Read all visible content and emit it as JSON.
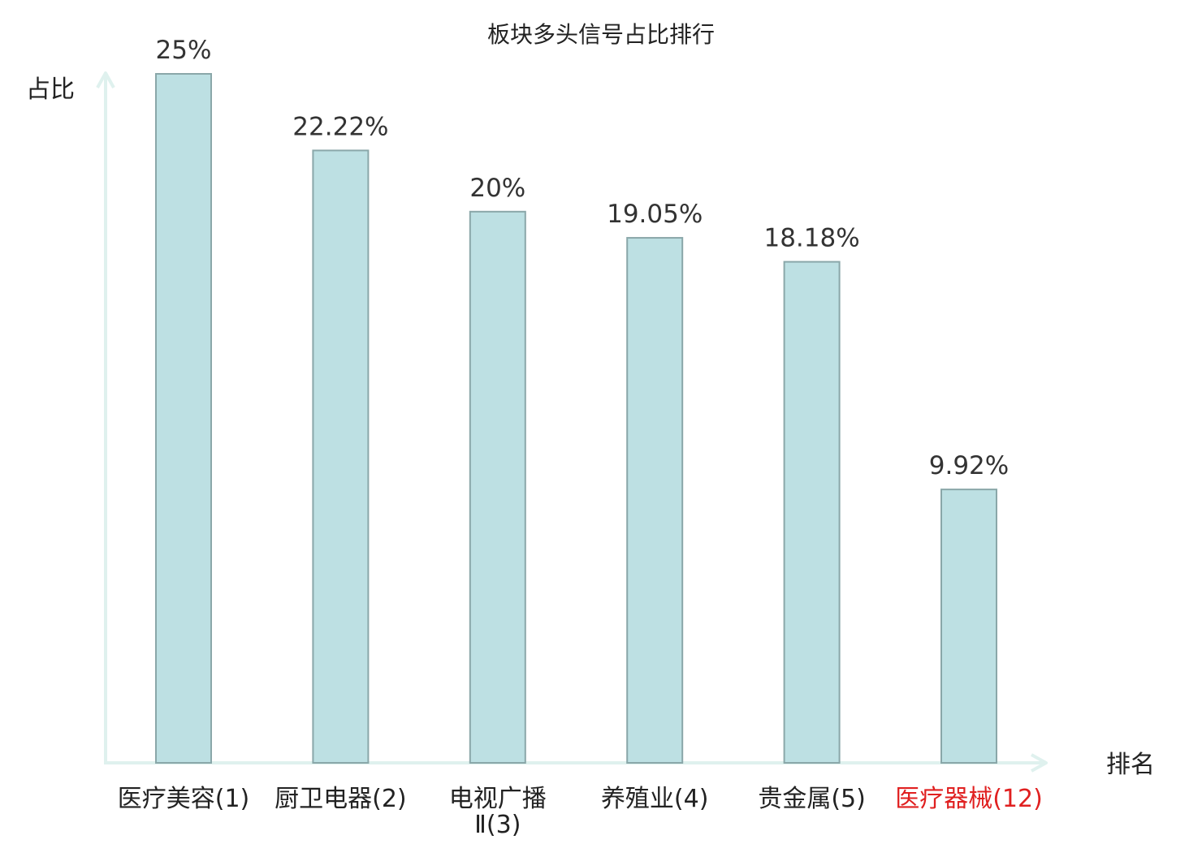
{
  "chart_data": {
    "type": "bar",
    "title": "板块多头信号占比排行",
    "ylabel": "占比",
    "xlabel": "排名",
    "categories": [
      [
        "医疗美容(1)"
      ],
      [
        "厨卫电器(2)"
      ],
      [
        "电视广播",
        "Ⅱ(3)"
      ],
      [
        "养殖业(4)"
      ],
      [
        "贵金属(5)"
      ],
      [
        "医疗器械(12)"
      ]
    ],
    "values": [
      25,
      22.22,
      20,
      19.05,
      18.18,
      9.92
    ],
    "value_labels": [
      "25%",
      "22.22%",
      "20%",
      "19.05%",
      "18.18%",
      "9.92%"
    ],
    "highlight_index": 5,
    "ylim": [
      0,
      25
    ],
    "grid": false,
    "colors": {
      "bar_fill": "#bde0e3",
      "bar_stroke": "#8aa7a9",
      "axis": "#dff1ee",
      "highlight_text": "#e02020"
    }
  }
}
